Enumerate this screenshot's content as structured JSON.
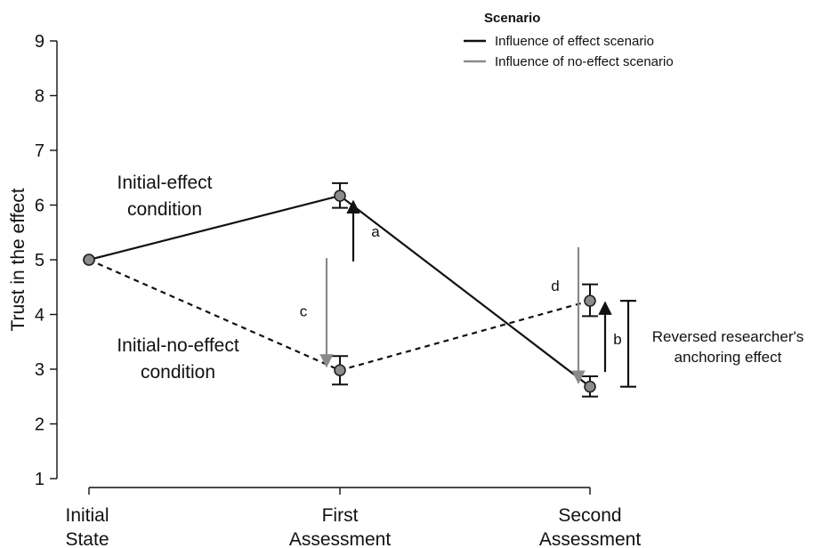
{
  "chart_data": {
    "type": "line",
    "title": "",
    "xlabel": "",
    "ylabel": "Trust in the effect",
    "ylim": [
      1,
      9
    ],
    "y_ticks": [
      "1",
      "2",
      "3",
      "4",
      "5",
      "6",
      "7",
      "8",
      "9"
    ],
    "categories": [
      [
        "Initial",
        "State"
      ],
      [
        "First",
        "Assessment"
      ],
      [
        "Second",
        "Assessment"
      ]
    ],
    "series": [
      {
        "key": "initial_effect",
        "values": [
          5.0,
          6.17,
          2.68
        ],
        "err_low": [
          null,
          5.95,
          2.5
        ],
        "err_high": [
          null,
          6.4,
          2.87
        ],
        "line_style": "solid",
        "color": "#111111"
      },
      {
        "key": "initial_no_effect",
        "values": [
          5.0,
          2.98,
          4.25
        ],
        "err_low": [
          null,
          2.72,
          3.97
        ],
        "err_high": [
          null,
          3.24,
          4.55
        ],
        "line_style": "dashed",
        "color": "#111111"
      }
    ],
    "condition_labels": [
      {
        "lines": [
          "Initial-effect",
          "condition"
        ]
      },
      {
        "lines": [
          "Initial-no-effect",
          "condition"
        ]
      }
    ],
    "legend": {
      "title": "Scenario",
      "position": "top-right",
      "entries": [
        {
          "label": "Influence of effect scenario",
          "color": "#111111"
        },
        {
          "label": "Influence of no-effect scenario",
          "color": "#8a8a8a"
        }
      ]
    },
    "arrows": [
      {
        "label": "a",
        "category": 1,
        "from": 4.97,
        "to": 6.07,
        "color": "#111111"
      },
      {
        "label": "c",
        "category": 1,
        "from": 5.03,
        "to": 3.05,
        "color": "#8a8a8a"
      },
      {
        "label": "d",
        "category": 2,
        "from": 5.23,
        "to": 2.75,
        "color": "#8a8a8a"
      },
      {
        "label": "b",
        "category": 2,
        "from": 2.95,
        "to": 4.22,
        "color": "#111111"
      }
    ],
    "bracket": {
      "from": 2.68,
      "to": 4.25,
      "lines": [
        "Reversed researcher's",
        "anchoring effect"
      ]
    },
    "grid": false
  }
}
